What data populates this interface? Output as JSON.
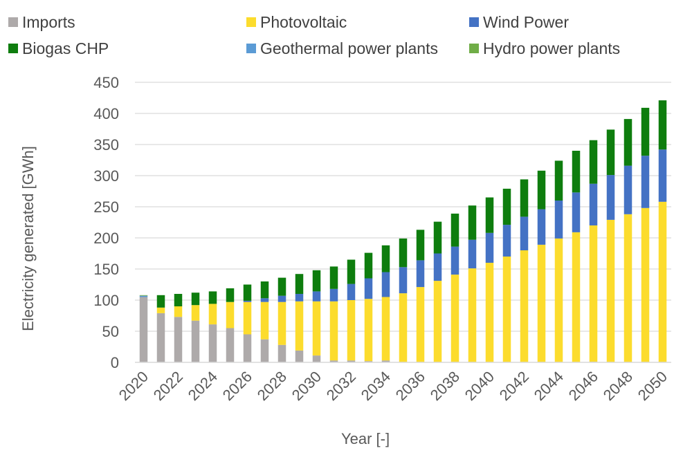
{
  "chart_data": {
    "type": "bar",
    "stacked": true,
    "xlabel": "Year [-]",
    "ylabel": "Electricity generated [GWh]",
    "ylim": [
      0,
      450
    ],
    "yticks": [
      0,
      50,
      100,
      150,
      200,
      250,
      300,
      350,
      400,
      450
    ],
    "grid": true,
    "legend_position": "top",
    "categories": [
      "2020",
      "2021",
      "2022",
      "2023",
      "2024",
      "2025",
      "2026",
      "2027",
      "2028",
      "2029",
      "2030",
      "2031",
      "2032",
      "2033",
      "2034",
      "2035",
      "2036",
      "2037",
      "2038",
      "2039",
      "2040",
      "2041",
      "2042",
      "2043",
      "2044",
      "2045",
      "2046",
      "2047",
      "2048",
      "2049",
      "2050"
    ],
    "tick_labels": [
      "2020",
      "2022",
      "2024",
      "2026",
      "2028",
      "2030",
      "2032",
      "2034",
      "2036",
      "2038",
      "2040",
      "2042",
      "2044",
      "2046",
      "2048",
      "2050"
    ],
    "series": [
      {
        "name": "Imports",
        "color": "#aeaaaa",
        "values": [
          105,
          79,
          73,
          67,
          61,
          55,
          45,
          37,
          28,
          19,
          11,
          3,
          3,
          2,
          3,
          0,
          0,
          0,
          0,
          0,
          0,
          0,
          0,
          0,
          0,
          0,
          1,
          0,
          0,
          0,
          0
        ]
      },
      {
        "name": "Photovoltaic",
        "color": "#fcdc2d",
        "values": [
          0,
          9,
          17,
          25,
          33,
          42,
          52,
          60,
          69,
          79,
          87,
          95,
          97,
          100,
          102,
          111,
          121,
          131,
          141,
          151,
          160,
          170,
          180,
          189,
          199,
          209,
          219,
          229,
          238,
          248,
          258
        ]
      },
      {
        "name": "Wind Power",
        "color": "#4472c4",
        "values": [
          0,
          0,
          0,
          0,
          0,
          0,
          2,
          6,
          10,
          12,
          16,
          20,
          26,
          33,
          40,
          42,
          43,
          44,
          45,
          46,
          48,
          51,
          54,
          57,
          61,
          64,
          67,
          72,
          78,
          84,
          84
        ]
      },
      {
        "name": "Biogas CHP",
        "color": "#0e7d0e",
        "values": [
          0,
          20,
          20,
          20,
          20,
          22,
          26,
          27,
          29,
          32,
          34,
          36,
          39,
          41,
          43,
          46,
          49,
          51,
          53,
          55,
          57,
          58,
          60,
          62,
          64,
          67,
          70,
          73,
          75,
          77,
          79
        ]
      },
      {
        "name": "Geothermal power plants",
        "color": "#5b9bd5",
        "values": [
          2,
          0,
          0,
          0,
          0,
          0,
          0,
          0,
          0,
          0,
          0,
          0,
          0,
          0,
          0,
          0,
          0,
          0,
          0,
          0,
          0,
          0,
          0,
          0,
          0,
          0,
          0,
          0,
          0,
          0,
          0
        ]
      },
      {
        "name": "Hydro power plants",
        "color": "#70ad47",
        "values": [
          1,
          0,
          0,
          0,
          0,
          0,
          0,
          0,
          0,
          0,
          0,
          0,
          0,
          0,
          0,
          0,
          0,
          0,
          0,
          0,
          0,
          0,
          0,
          0,
          0,
          0,
          0,
          0,
          0,
          0,
          0
        ]
      }
    ]
  }
}
